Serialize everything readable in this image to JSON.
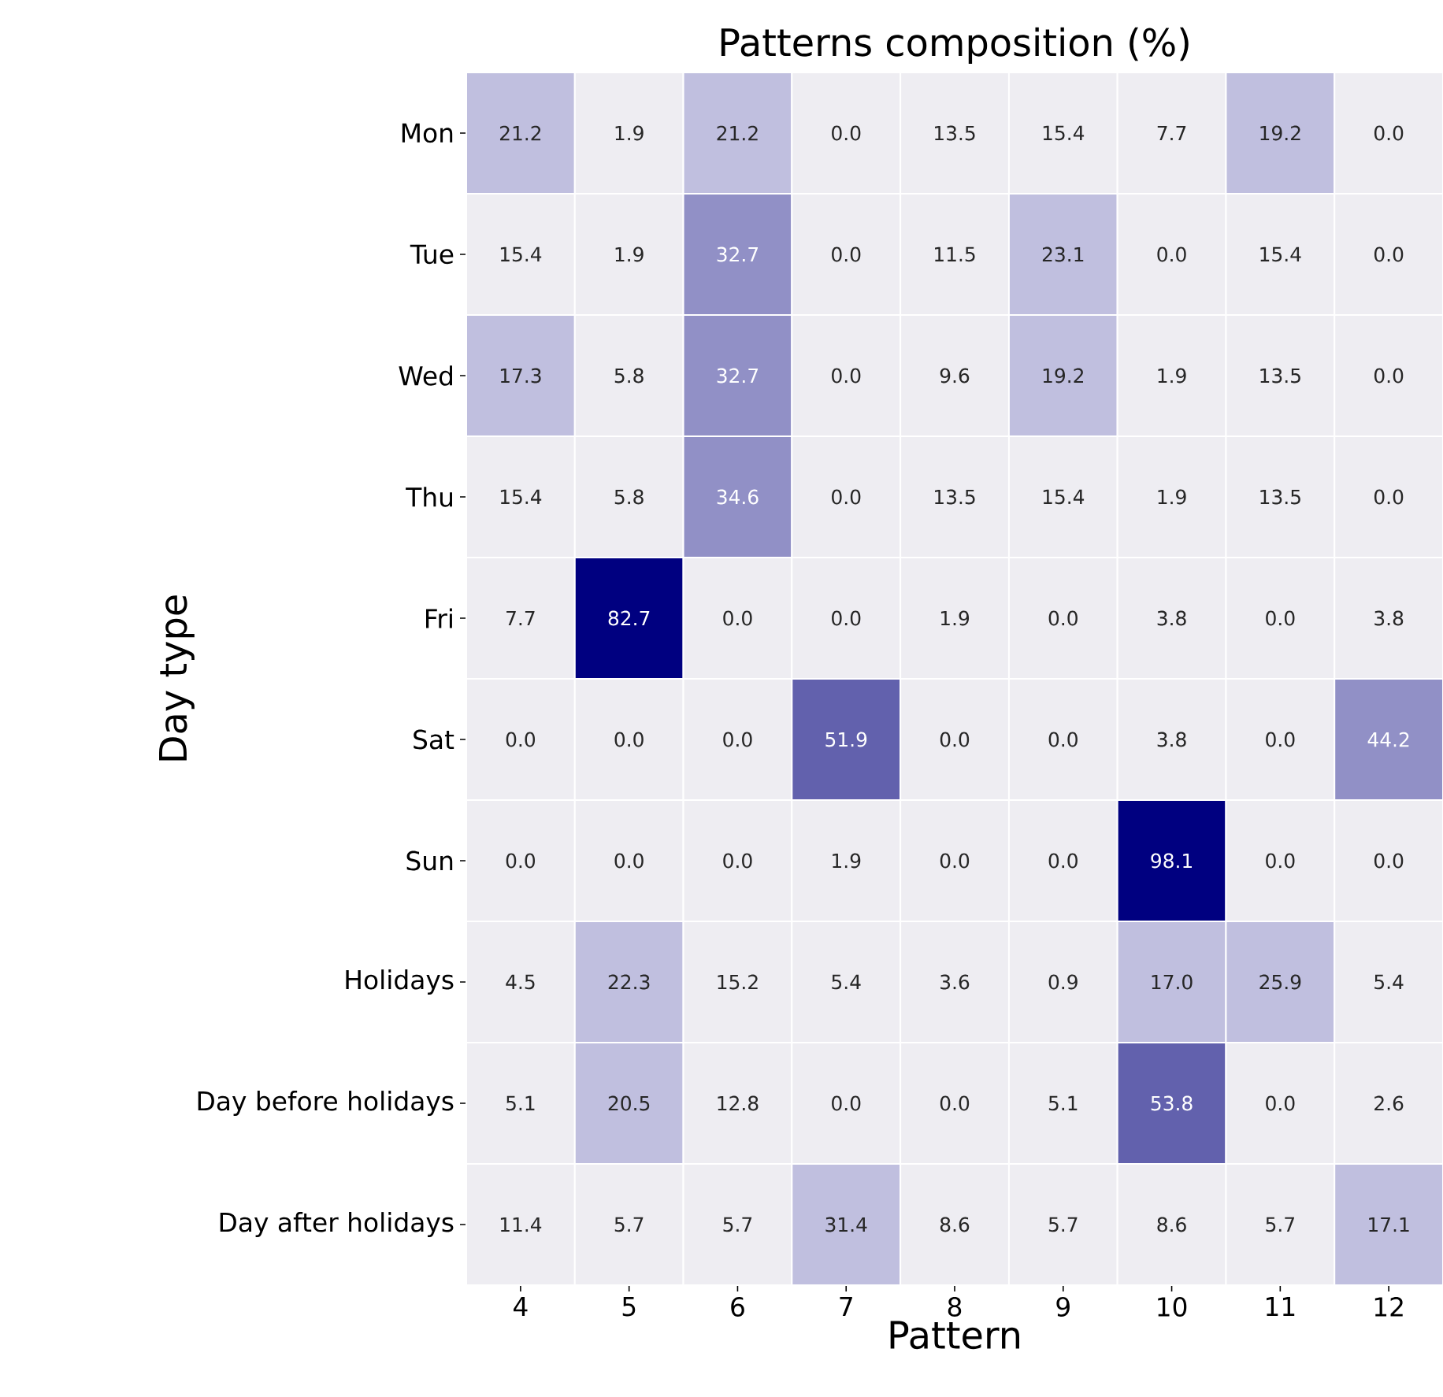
{
  "chart_data": {
    "type": "heatmap",
    "title": "Patterns composition (%)",
    "xlabel": "Pattern",
    "ylabel": "Day type",
    "categories": [
      "4",
      "5",
      "6",
      "7",
      "8",
      "9",
      "10",
      "11",
      "12"
    ],
    "y_categories": [
      "Mon",
      "Tue",
      "Wed",
      "Thu",
      "Fri",
      "Sat",
      "Sun",
      "Holidays",
      "Day before holidays",
      "Day after holidays"
    ],
    "cells": [
      [
        21.2,
        1.9,
        21.2,
        0.0,
        13.5,
        15.4,
        7.7,
        19.2,
        0.0
      ],
      [
        15.4,
        1.9,
        32.7,
        0.0,
        11.5,
        23.1,
        0.0,
        15.4,
        0.0
      ],
      [
        17.3,
        5.8,
        32.7,
        0.0,
        9.6,
        19.2,
        1.9,
        13.5,
        0.0
      ],
      [
        15.4,
        5.8,
        34.6,
        0.0,
        13.5,
        15.4,
        1.9,
        13.5,
        0.0
      ],
      [
        7.7,
        82.7,
        0.0,
        0.0,
        1.9,
        0.0,
        3.8,
        0.0,
        3.8
      ],
      [
        0.0,
        0.0,
        0.0,
        51.9,
        0.0,
        0.0,
        3.8,
        0.0,
        44.2
      ],
      [
        0.0,
        0.0,
        0.0,
        1.9,
        0.0,
        0.0,
        98.1,
        0.0,
        0.0
      ],
      [
        4.5,
        22.3,
        15.2,
        5.4,
        3.6,
        0.9,
        17.0,
        25.9,
        5.4
      ],
      [
        5.1,
        20.5,
        12.8,
        0.0,
        0.0,
        5.1,
        53.8,
        0.0,
        2.6
      ],
      [
        11.4,
        5.7,
        5.7,
        31.4,
        8.6,
        5.7,
        8.6,
        5.7,
        17.1
      ]
    ],
    "cell_labels": [
      [
        "21.2",
        "1.9",
        "21.2",
        "0.0",
        "13.5",
        "15.4",
        "7.7",
        "19.2",
        "0.0"
      ],
      [
        "15.4",
        "1.9",
        "32.7",
        "0.0",
        "11.5",
        "23.1",
        "0.0",
        "15.4",
        "0.0"
      ],
      [
        "17.3",
        "5.8",
        "32.7",
        "0.0",
        "9.6",
        "19.2",
        "1.9",
        "13.5",
        "0.0"
      ],
      [
        "15.4",
        "5.8",
        "34.6",
        "0.0",
        "13.5",
        "15.4",
        "1.9",
        "13.5",
        "0.0"
      ],
      [
        "7.7",
        "82.7",
        "0.0",
        "0.0",
        "1.9",
        "0.0",
        "3.8",
        "0.0",
        "3.8"
      ],
      [
        "0.0",
        "0.0",
        "0.0",
        "51.9",
        "0.0",
        "0.0",
        "3.8",
        "0.0",
        "44.2"
      ],
      [
        "0.0",
        "0.0",
        "0.0",
        "1.9",
        "0.0",
        "0.0",
        "98.1",
        "0.0",
        "0.0"
      ],
      [
        "4.5",
        "22.3",
        "15.2",
        "5.4",
        "3.6",
        "0.9",
        "17.0",
        "25.9",
        "5.4"
      ],
      [
        "5.1",
        "20.5",
        "12.8",
        "0.0",
        "0.0",
        "5.1",
        "53.8",
        "0.0",
        "2.6"
      ],
      [
        "11.4",
        "5.7",
        "5.7",
        "31.4",
        "8.6",
        "5.7",
        "8.6",
        "5.7",
        "17.1"
      ]
    ]
  }
}
